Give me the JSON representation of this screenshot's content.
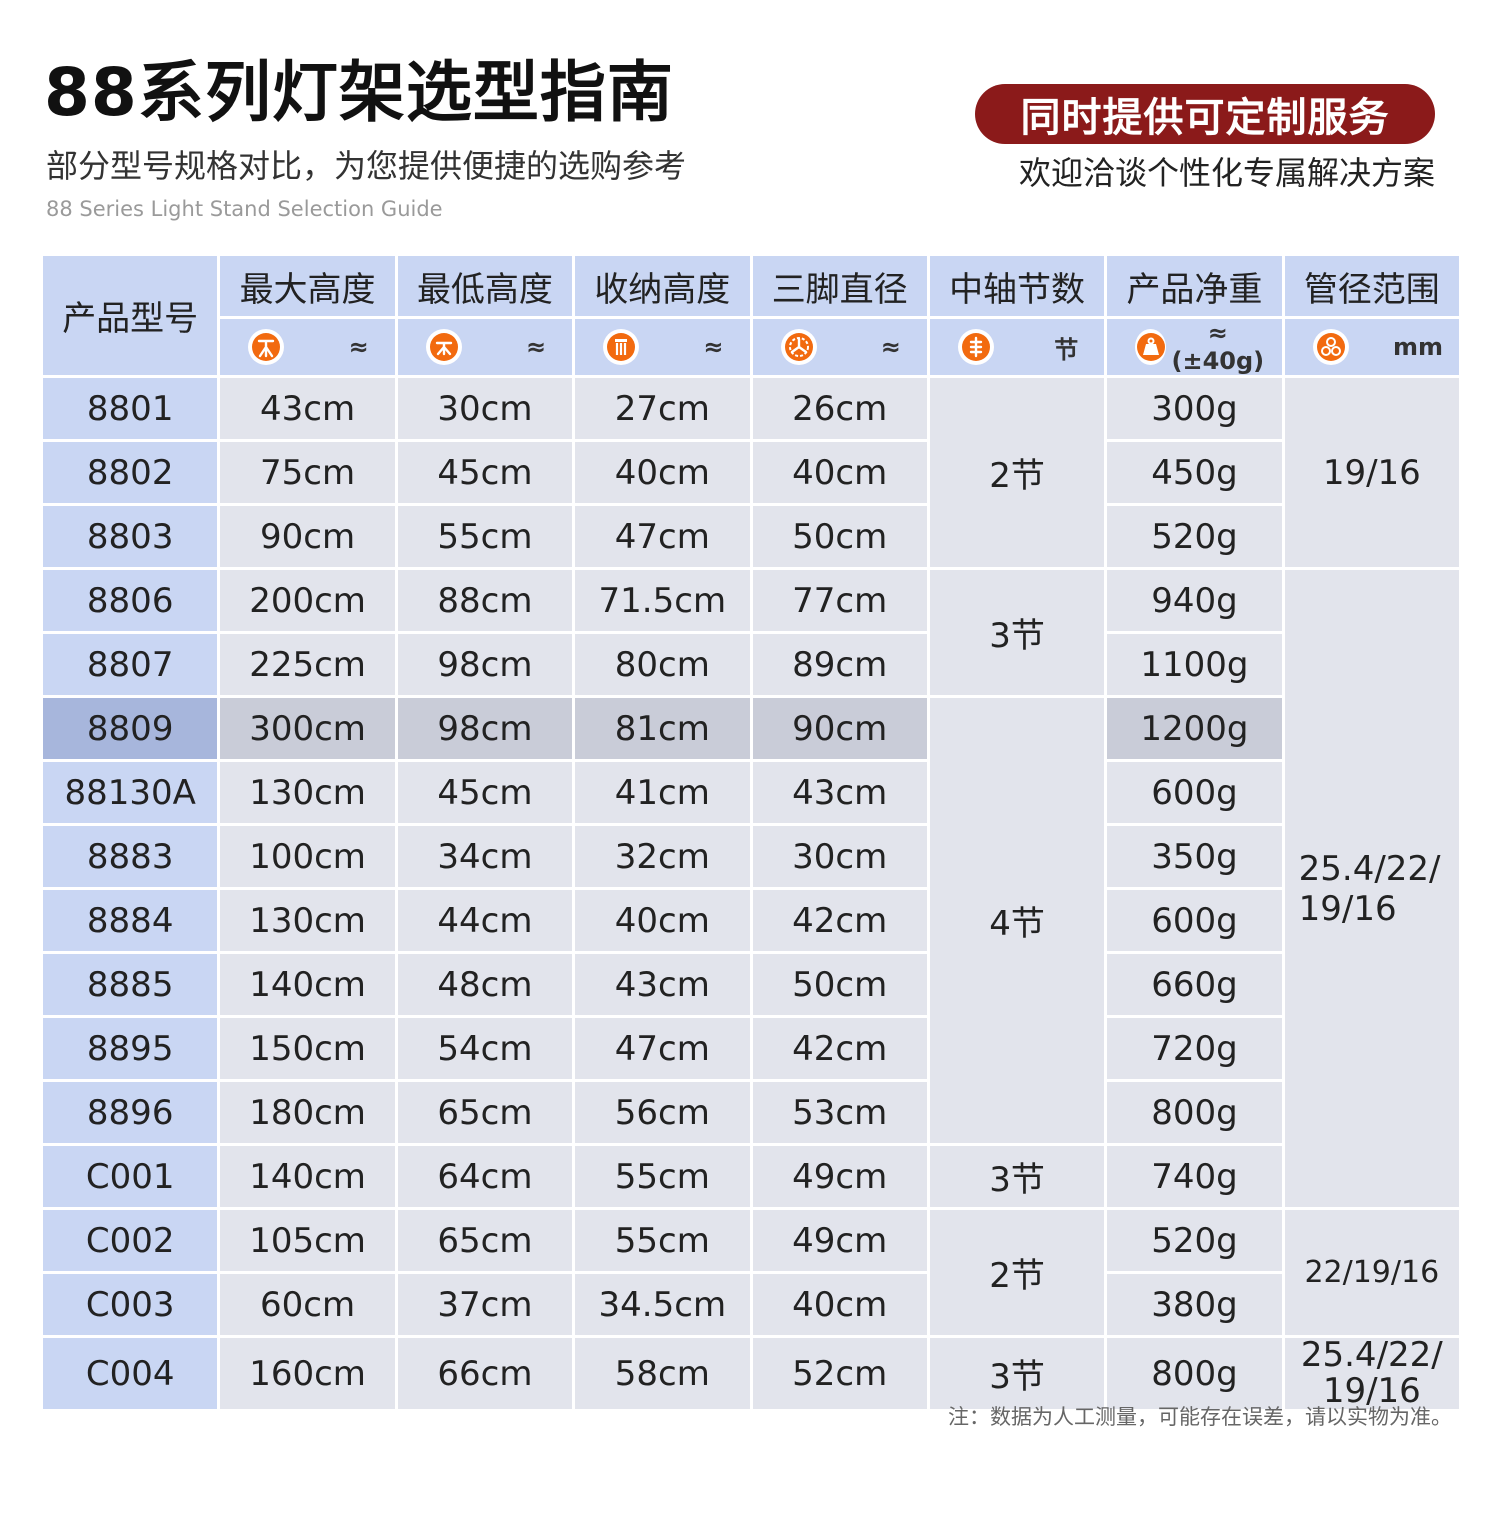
{
  "header": {
    "title": "88系列灯架选型指南",
    "subtitle": "部分型号规格对比，为您提供便捷的选购参考",
    "subtitle_en": "88 Series Light Stand Selection Guide",
    "badge": "同时提供可定制服务",
    "badge_sub": "欢迎洽谈个性化专属解决方案"
  },
  "colors": {
    "badge_bg": "#8b1a1a",
    "header_bg": "#c9d6f3",
    "cell_bg": "#e2e4ec",
    "highlight_model_bg": "#a7b6dc",
    "icon_orange": "#f26a0f"
  },
  "table": {
    "model_header": "产品型号",
    "columns": [
      {
        "name": "最大高度",
        "unit": "≈",
        "icon": "tripod-extended-icon"
      },
      {
        "name": "最低高度",
        "unit": "≈",
        "icon": "tripod-lowered-icon"
      },
      {
        "name": "收纳高度",
        "unit": "≈",
        "icon": "folded-stand-icon"
      },
      {
        "name": "三脚直径",
        "unit": "≈",
        "icon": "tripod-footprint-icon"
      },
      {
        "name": "中轴节数",
        "unit": "节",
        "icon": "column-sections-icon"
      },
      {
        "name": "产品净重",
        "unit": "≈ (±40g)",
        "icon": "weight-icon"
      },
      {
        "name": "管径范围",
        "unit": "mm",
        "icon": "tube-diameter-icon"
      }
    ],
    "rows": [
      {
        "model": "8801",
        "max": "43cm",
        "min": "30cm",
        "folded": "27cm",
        "dia": "26cm",
        "weight": "300g"
      },
      {
        "model": "8802",
        "max": "75cm",
        "min": "45cm",
        "folded": "40cm",
        "dia": "40cm",
        "weight": "450g"
      },
      {
        "model": "8803",
        "max": "90cm",
        "min": "55cm",
        "folded": "47cm",
        "dia": "50cm",
        "weight": "520g"
      },
      {
        "model": "8806",
        "max": "200cm",
        "min": "88cm",
        "folded": "71.5cm",
        "dia": "77cm",
        "weight": "940g"
      },
      {
        "model": "8807",
        "max": "225cm",
        "min": "98cm",
        "folded": "80cm",
        "dia": "89cm",
        "weight": "1100g"
      },
      {
        "model": "8809",
        "max": "300cm",
        "min": "98cm",
        "folded": "81cm",
        "dia": "90cm",
        "weight": "1200g"
      },
      {
        "model": "88130A",
        "max": "130cm",
        "min": "45cm",
        "folded": "41cm",
        "dia": "43cm",
        "weight": "600g"
      },
      {
        "model": "8883",
        "max": "100cm",
        "min": "34cm",
        "folded": "32cm",
        "dia": "30cm",
        "weight": "350g"
      },
      {
        "model": "8884",
        "max": "130cm",
        "min": "44cm",
        "folded": "40cm",
        "dia": "42cm",
        "weight": "600g"
      },
      {
        "model": "8885",
        "max": "140cm",
        "min": "48cm",
        "folded": "43cm",
        "dia": "50cm",
        "weight": "660g"
      },
      {
        "model": "8895",
        "max": "150cm",
        "min": "54cm",
        "folded": "47cm",
        "dia": "42cm",
        "weight": "720g"
      },
      {
        "model": "8896",
        "max": "180cm",
        "min": "65cm",
        "folded": "56cm",
        "dia": "53cm",
        "weight": "800g"
      },
      {
        "model": "C001",
        "max": "140cm",
        "min": "64cm",
        "folded": "55cm",
        "dia": "49cm",
        "weight": "740g"
      },
      {
        "model": "C002",
        "max": "105cm",
        "min": "65cm",
        "folded": "55cm",
        "dia": "49cm",
        "weight": "520g"
      },
      {
        "model": "C003",
        "max": "60cm",
        "min": "37cm",
        "folded": "34.5cm",
        "dia": "40cm",
        "weight": "380g"
      },
      {
        "model": "C004",
        "max": "160cm",
        "min": "66cm",
        "folded": "58cm",
        "dia": "52cm",
        "weight": "800g"
      }
    ],
    "sections_groups": [
      "2节",
      "3节",
      "4节",
      "3节",
      "2节",
      "3节"
    ],
    "tube_groups": [
      "19/16",
      "25.4/22/\n19/16",
      "22/19/16",
      "25.4/22/\n19/16"
    ]
  },
  "note": "注：数据为人工测量，可能存在误差，请以实物为准。"
}
